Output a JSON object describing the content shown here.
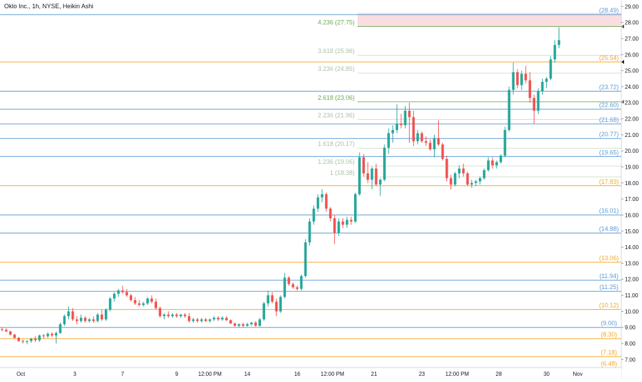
{
  "header": {
    "title": "Oklo Inc., 1h, NYSE, Heikin Ashi"
  },
  "colors": {
    "blue_level": "#5b9bd5",
    "orange_level": "#f5a623",
    "fib_green": "#6aa84f",
    "fib_faint": "#a9c3a6",
    "bull": "#26a69a",
    "bear": "#ef5350",
    "target_zone": "#f8d7da"
  },
  "chart_data": {
    "type": "candlestick",
    "title": "Oklo Inc., 1h, NYSE, Heikin Ashi",
    "ylim": [
      6.5,
      29.4
    ],
    "y_ticks": [
      "29.00",
      "28.00",
      "27.00",
      "26.00",
      "25.00",
      "24.00",
      "23.00",
      "22.00",
      "21.00",
      "20.00",
      "19.00",
      "18.00",
      "17.00",
      "16.00",
      "15.00",
      "14.00",
      "13.00",
      "12.00",
      "11.00",
      "10.00",
      "9.00",
      "8.00",
      "7.00"
    ],
    "x_ticks": [
      {
        "label": "Oct",
        "x": 0.6
      },
      {
        "label": "3",
        "x": 3.2
      },
      {
        "label": "7",
        "x": 5.5
      },
      {
        "label": "9",
        "x": 8.1
      },
      {
        "label": "12:00 PM",
        "x": 9.7
      },
      {
        "label": "14",
        "x": 11.5
      },
      {
        "label": "16",
        "x": 13.9
      },
      {
        "label": "12:00 PM",
        "x": 15.6
      },
      {
        "label": "21",
        "x": 17.6
      },
      {
        "label": "23",
        "x": 19.9
      },
      {
        "label": "12:00 PM",
        "x": 21.6
      },
      {
        "label": "28",
        "x": 23.6
      },
      {
        "label": "30",
        "x": 25.9
      },
      {
        "label": "Nov",
        "x": 27.4
      }
    ],
    "xlim": [
      -0.4,
      29.5
    ],
    "levels": [
      {
        "label": "(28.49)",
        "value": 28.49,
        "color": "blue"
      },
      {
        "label": "(25.54)",
        "value": 25.54,
        "color": "orange"
      },
      {
        "label": "(23.72)",
        "value": 23.72,
        "color": "blue"
      },
      {
        "label": "(22.60)",
        "value": 22.6,
        "color": "blue"
      },
      {
        "label": "(21.68)",
        "value": 21.68,
        "color": "blue"
      },
      {
        "label": "(20.77)",
        "value": 20.77,
        "color": "blue"
      },
      {
        "label": "(19.65)",
        "value": 19.65,
        "color": "blue"
      },
      {
        "label": "(17.83)",
        "value": 17.83,
        "color": "orange"
      },
      {
        "label": "(16.01)",
        "value": 16.01,
        "color": "blue"
      },
      {
        "label": "(14.88)",
        "value": 14.88,
        "color": "blue"
      },
      {
        "label": "(13.06)",
        "value": 13.06,
        "color": "orange"
      },
      {
        "label": "(11.94)",
        "value": 11.94,
        "color": "blue"
      },
      {
        "label": "(11.25)",
        "value": 11.25,
        "color": "blue"
      },
      {
        "label": "(10.12)",
        "value": 10.12,
        "color": "orange"
      },
      {
        "label": "(9.00)",
        "value": 9.0,
        "color": "blue"
      },
      {
        "label": "(8.30)",
        "value": 8.3,
        "color": "orange"
      },
      {
        "label": "(7.18)",
        "value": 7.18,
        "color": "orange"
      },
      {
        "label": "(6.48)",
        "value": 6.48,
        "color": "orange"
      }
    ],
    "fib_levels": [
      {
        "label": "4.236 (27.75)",
        "value": 27.75,
        "strong": true
      },
      {
        "label": "3.618 (25.96)",
        "value": 25.96,
        "strong": false
      },
      {
        "label": "3.236 (24.85)",
        "value": 24.85,
        "strong": false
      },
      {
        "label": "2.618 (23.06)",
        "value": 23.06,
        "strong": true
      },
      {
        "label": "2.236 (21.96)",
        "value": 21.96,
        "strong": false
      },
      {
        "label": "1.618 (20.17)",
        "value": 20.17,
        "strong": false
      },
      {
        "label": "1.236 (19.06)",
        "value": 19.06,
        "strong": false
      },
      {
        "label": "1 (18.38)",
        "value": 18.38,
        "strong": false
      }
    ],
    "fib_x_start": 16.8,
    "target_zone": {
      "from": 27.75,
      "to": 28.6,
      "x_start": 16.8
    },
    "candles": [
      {
        "x": -0.3,
        "o": 8.9,
        "h": 9.0,
        "l": 8.75,
        "c": 8.85
      },
      {
        "x": -0.1,
        "o": 8.85,
        "h": 8.95,
        "l": 8.7,
        "c": 8.75
      },
      {
        "x": 0.1,
        "o": 8.75,
        "h": 8.8,
        "l": 8.5,
        "c": 8.55
      },
      {
        "x": 0.3,
        "o": 8.55,
        "h": 8.6,
        "l": 8.3,
        "c": 8.35
      },
      {
        "x": 0.5,
        "o": 8.35,
        "h": 8.4,
        "l": 8.1,
        "c": 8.15
      },
      {
        "x": 0.7,
        "o": 8.15,
        "h": 8.25,
        "l": 8.0,
        "c": 8.1
      },
      {
        "x": 0.9,
        "o": 8.1,
        "h": 8.2,
        "l": 7.95,
        "c": 8.15
      },
      {
        "x": 1.1,
        "o": 8.15,
        "h": 8.35,
        "l": 8.05,
        "c": 8.3
      },
      {
        "x": 1.3,
        "o": 8.3,
        "h": 8.45,
        "l": 8.1,
        "c": 8.2
      },
      {
        "x": 1.5,
        "o": 8.2,
        "h": 8.55,
        "l": 8.1,
        "c": 8.5
      },
      {
        "x": 1.7,
        "o": 8.5,
        "h": 8.6,
        "l": 8.3,
        "c": 8.45
      },
      {
        "x": 1.9,
        "o": 8.45,
        "h": 8.7,
        "l": 8.35,
        "c": 8.6
      },
      {
        "x": 2.1,
        "o": 8.6,
        "h": 8.7,
        "l": 8.4,
        "c": 8.5
      },
      {
        "x": 2.3,
        "o": 8.5,
        "h": 8.75,
        "l": 8.0,
        "c": 8.65
      },
      {
        "x": 2.5,
        "o": 8.65,
        "h": 9.3,
        "l": 8.6,
        "c": 9.2
      },
      {
        "x": 2.7,
        "o": 9.2,
        "h": 9.8,
        "l": 9.1,
        "c": 9.7
      },
      {
        "x": 2.9,
        "o": 9.7,
        "h": 10.3,
        "l": 9.5,
        "c": 10.0
      },
      {
        "x": 3.1,
        "o": 10.0,
        "h": 10.2,
        "l": 9.4,
        "c": 9.5
      },
      {
        "x": 3.3,
        "o": 9.5,
        "h": 9.7,
        "l": 9.2,
        "c": 9.4
      },
      {
        "x": 3.5,
        "o": 9.4,
        "h": 9.8,
        "l": 9.3,
        "c": 9.6
      },
      {
        "x": 3.7,
        "o": 9.6,
        "h": 9.7,
        "l": 9.3,
        "c": 9.4
      },
      {
        "x": 3.9,
        "o": 9.4,
        "h": 9.6,
        "l": 9.3,
        "c": 9.5
      },
      {
        "x": 4.1,
        "o": 9.5,
        "h": 9.7,
        "l": 9.3,
        "c": 9.4
      },
      {
        "x": 4.3,
        "o": 9.4,
        "h": 9.9,
        "l": 9.3,
        "c": 9.8
      },
      {
        "x": 4.5,
        "o": 9.8,
        "h": 10.1,
        "l": 9.4,
        "c": 9.5
      },
      {
        "x": 4.7,
        "o": 9.5,
        "h": 10.2,
        "l": 9.4,
        "c": 10.1
      },
      {
        "x": 4.9,
        "o": 10.1,
        "h": 10.9,
        "l": 10.0,
        "c": 10.8
      },
      {
        "x": 5.1,
        "o": 10.8,
        "h": 11.2,
        "l": 10.6,
        "c": 11.1
      },
      {
        "x": 5.3,
        "o": 11.1,
        "h": 11.4,
        "l": 10.9,
        "c": 11.3
      },
      {
        "x": 5.5,
        "o": 11.3,
        "h": 11.6,
        "l": 11.1,
        "c": 11.2
      },
      {
        "x": 5.7,
        "o": 11.2,
        "h": 11.4,
        "l": 10.9,
        "c": 11.0
      },
      {
        "x": 5.9,
        "o": 11.0,
        "h": 11.1,
        "l": 10.6,
        "c": 10.7
      },
      {
        "x": 6.1,
        "o": 10.7,
        "h": 10.9,
        "l": 10.4,
        "c": 10.5
      },
      {
        "x": 6.3,
        "o": 10.5,
        "h": 10.7,
        "l": 10.3,
        "c": 10.4
      },
      {
        "x": 6.5,
        "o": 10.4,
        "h": 10.6,
        "l": 10.3,
        "c": 10.5
      },
      {
        "x": 6.7,
        "o": 10.5,
        "h": 10.9,
        "l": 10.4,
        "c": 10.8
      },
      {
        "x": 6.9,
        "o": 10.8,
        "h": 11.0,
        "l": 10.5,
        "c": 10.6
      },
      {
        "x": 7.1,
        "o": 10.6,
        "h": 10.8,
        "l": 10.1,
        "c": 10.2
      },
      {
        "x": 7.3,
        "o": 10.2,
        "h": 10.3,
        "l": 9.6,
        "c": 9.7
      },
      {
        "x": 7.5,
        "o": 9.7,
        "h": 9.9,
        "l": 9.5,
        "c": 9.8
      },
      {
        "x": 7.7,
        "o": 9.8,
        "h": 10.0,
        "l": 9.6,
        "c": 9.7
      },
      {
        "x": 7.9,
        "o": 9.7,
        "h": 9.9,
        "l": 9.6,
        "c": 9.8
      },
      {
        "x": 8.1,
        "o": 9.8,
        "h": 9.9,
        "l": 9.6,
        "c": 9.7
      },
      {
        "x": 8.3,
        "o": 9.7,
        "h": 9.85,
        "l": 9.6,
        "c": 9.8
      },
      {
        "x": 8.5,
        "o": 9.8,
        "h": 9.9,
        "l": 9.6,
        "c": 9.7
      },
      {
        "x": 8.7,
        "o": 9.7,
        "h": 9.9,
        "l": 9.3,
        "c": 9.4
      },
      {
        "x": 8.9,
        "o": 9.4,
        "h": 9.6,
        "l": 9.3,
        "c": 9.5
      },
      {
        "x": 9.1,
        "o": 9.5,
        "h": 9.6,
        "l": 9.3,
        "c": 9.4
      },
      {
        "x": 9.3,
        "o": 9.4,
        "h": 9.6,
        "l": 9.3,
        "c": 9.5
      },
      {
        "x": 9.5,
        "o": 9.5,
        "h": 9.6,
        "l": 9.35,
        "c": 9.4
      },
      {
        "x": 9.7,
        "o": 9.4,
        "h": 9.55,
        "l": 9.3,
        "c": 9.5
      },
      {
        "x": 9.9,
        "o": 9.5,
        "h": 9.7,
        "l": 9.4,
        "c": 9.6
      },
      {
        "x": 10.1,
        "o": 9.6,
        "h": 9.7,
        "l": 9.4,
        "c": 9.5
      },
      {
        "x": 10.3,
        "o": 9.5,
        "h": 9.7,
        "l": 9.4,
        "c": 9.6
      },
      {
        "x": 10.5,
        "o": 9.6,
        "h": 9.7,
        "l": 9.4,
        "c": 9.45
      },
      {
        "x": 10.7,
        "o": 9.45,
        "h": 9.5,
        "l": 9.2,
        "c": 9.25
      },
      {
        "x": 10.9,
        "o": 9.25,
        "h": 9.3,
        "l": 9.05,
        "c": 9.1
      },
      {
        "x": 11.1,
        "o": 9.1,
        "h": 9.25,
        "l": 9.0,
        "c": 9.2
      },
      {
        "x": 11.3,
        "o": 9.2,
        "h": 9.3,
        "l": 9.0,
        "c": 9.1
      },
      {
        "x": 11.5,
        "o": 9.1,
        "h": 9.3,
        "l": 9.05,
        "c": 9.2
      },
      {
        "x": 11.7,
        "o": 9.2,
        "h": 9.35,
        "l": 9.1,
        "c": 9.3
      },
      {
        "x": 11.9,
        "o": 9.3,
        "h": 9.4,
        "l": 9.05,
        "c": 9.1
      },
      {
        "x": 12.1,
        "o": 9.1,
        "h": 9.6,
        "l": 9.05,
        "c": 9.5
      },
      {
        "x": 12.3,
        "o": 9.5,
        "h": 10.6,
        "l": 9.4,
        "c": 10.5
      },
      {
        "x": 12.5,
        "o": 10.5,
        "h": 11.3,
        "l": 10.3,
        "c": 11.0
      },
      {
        "x": 12.7,
        "o": 11.0,
        "h": 11.2,
        "l": 10.5,
        "c": 10.6
      },
      {
        "x": 12.9,
        "o": 10.6,
        "h": 10.8,
        "l": 9.7,
        "c": 10.0
      },
      {
        "x": 13.1,
        "o": 10.0,
        "h": 11.0,
        "l": 9.9,
        "c": 10.9
      },
      {
        "x": 13.3,
        "o": 10.9,
        "h": 12.4,
        "l": 10.8,
        "c": 12.1
      },
      {
        "x": 13.5,
        "o": 12.1,
        "h": 12.2,
        "l": 11.6,
        "c": 11.7
      },
      {
        "x": 13.7,
        "o": 11.7,
        "h": 11.8,
        "l": 11.4,
        "c": 11.5
      },
      {
        "x": 13.9,
        "o": 11.5,
        "h": 11.6,
        "l": 11.3,
        "c": 11.4
      },
      {
        "x": 14.1,
        "o": 11.4,
        "h": 12.3,
        "l": 11.3,
        "c": 12.2
      },
      {
        "x": 14.3,
        "o": 12.2,
        "h": 14.5,
        "l": 12.1,
        "c": 14.3
      },
      {
        "x": 14.5,
        "o": 14.3,
        "h": 15.8,
        "l": 14.1,
        "c": 15.6
      },
      {
        "x": 14.7,
        "o": 15.6,
        "h": 16.6,
        "l": 15.4,
        "c": 16.4
      },
      {
        "x": 14.9,
        "o": 16.4,
        "h": 17.3,
        "l": 16.2,
        "c": 17.1
      },
      {
        "x": 15.1,
        "o": 17.1,
        "h": 17.6,
        "l": 16.8,
        "c": 17.3
      },
      {
        "x": 15.3,
        "o": 17.3,
        "h": 17.4,
        "l": 16.2,
        "c": 16.4
      },
      {
        "x": 15.5,
        "o": 16.4,
        "h": 16.5,
        "l": 15.6,
        "c": 15.8
      },
      {
        "x": 15.7,
        "o": 15.8,
        "h": 16.0,
        "l": 14.2,
        "c": 14.9
      },
      {
        "x": 15.9,
        "o": 14.9,
        "h": 15.8,
        "l": 14.7,
        "c": 15.6
      },
      {
        "x": 16.1,
        "o": 15.6,
        "h": 15.8,
        "l": 15.2,
        "c": 15.4
      },
      {
        "x": 16.3,
        "o": 15.4,
        "h": 15.9,
        "l": 15.2,
        "c": 15.7
      },
      {
        "x": 16.5,
        "o": 15.7,
        "h": 15.9,
        "l": 15.4,
        "c": 15.6
      },
      {
        "x": 16.7,
        "o": 15.6,
        "h": 17.4,
        "l": 15.5,
        "c": 17.3
      },
      {
        "x": 16.9,
        "o": 17.3,
        "h": 19.9,
        "l": 17.2,
        "c": 19.6
      },
      {
        "x": 17.1,
        "o": 19.6,
        "h": 19.8,
        "l": 18.4,
        "c": 18.6
      },
      {
        "x": 17.3,
        "o": 18.6,
        "h": 19.3,
        "l": 18.0,
        "c": 18.2
      },
      {
        "x": 17.5,
        "o": 18.2,
        "h": 19.0,
        "l": 17.6,
        "c": 18.9
      },
      {
        "x": 17.7,
        "o": 18.9,
        "h": 19.2,
        "l": 17.8,
        "c": 17.9
      },
      {
        "x": 17.9,
        "o": 17.9,
        "h": 18.3,
        "l": 17.2,
        "c": 18.2
      },
      {
        "x": 18.1,
        "o": 18.2,
        "h": 20.4,
        "l": 18.1,
        "c": 20.2
      },
      {
        "x": 18.3,
        "o": 20.2,
        "h": 21.4,
        "l": 19.8,
        "c": 21.1
      },
      {
        "x": 18.5,
        "o": 21.1,
        "h": 21.6,
        "l": 20.5,
        "c": 21.3
      },
      {
        "x": 18.7,
        "o": 21.3,
        "h": 22.9,
        "l": 21.1,
        "c": 21.7
      },
      {
        "x": 18.9,
        "o": 21.7,
        "h": 22.3,
        "l": 21.4,
        "c": 21.6
      },
      {
        "x": 19.1,
        "o": 21.6,
        "h": 22.8,
        "l": 21.4,
        "c": 22.5
      },
      {
        "x": 19.3,
        "o": 22.5,
        "h": 23.0,
        "l": 20.5,
        "c": 22.1
      },
      {
        "x": 19.5,
        "o": 22.1,
        "h": 22.5,
        "l": 20.3,
        "c": 20.6
      },
      {
        "x": 19.7,
        "o": 20.6,
        "h": 21.3,
        "l": 20.4,
        "c": 21.1
      },
      {
        "x": 19.9,
        "o": 21.1,
        "h": 21.2,
        "l": 20.5,
        "c": 20.6
      },
      {
        "x": 20.1,
        "o": 20.6,
        "h": 20.9,
        "l": 20.3,
        "c": 20.5
      },
      {
        "x": 20.3,
        "o": 20.5,
        "h": 20.7,
        "l": 20.0,
        "c": 20.1
      },
      {
        "x": 20.5,
        "o": 20.1,
        "h": 21.0,
        "l": 19.6,
        "c": 20.8
      },
      {
        "x": 20.7,
        "o": 20.8,
        "h": 21.9,
        "l": 20.3,
        "c": 20.4
      },
      {
        "x": 20.9,
        "o": 20.4,
        "h": 20.5,
        "l": 19.4,
        "c": 19.5
      },
      {
        "x": 21.1,
        "o": 19.5,
        "h": 19.7,
        "l": 18.1,
        "c": 18.3
      },
      {
        "x": 21.3,
        "o": 18.3,
        "h": 18.5,
        "l": 17.6,
        "c": 17.9
      },
      {
        "x": 21.5,
        "o": 17.9,
        "h": 18.7,
        "l": 17.8,
        "c": 18.6
      },
      {
        "x": 21.7,
        "o": 18.6,
        "h": 19.1,
        "l": 18.3,
        "c": 18.9
      },
      {
        "x": 21.9,
        "o": 18.9,
        "h": 19.2,
        "l": 18.4,
        "c": 18.6
      },
      {
        "x": 22.1,
        "o": 18.6,
        "h": 18.7,
        "l": 17.8,
        "c": 17.9
      },
      {
        "x": 22.3,
        "o": 17.9,
        "h": 18.2,
        "l": 17.7,
        "c": 18.0
      },
      {
        "x": 22.5,
        "o": 18.0,
        "h": 18.2,
        "l": 17.8,
        "c": 18.1
      },
      {
        "x": 22.7,
        "o": 18.1,
        "h": 18.4,
        "l": 17.9,
        "c": 18.3
      },
      {
        "x": 22.9,
        "o": 18.3,
        "h": 18.9,
        "l": 18.2,
        "c": 18.8
      },
      {
        "x": 23.1,
        "o": 18.8,
        "h": 19.6,
        "l": 18.7,
        "c": 19.4
      },
      {
        "x": 23.3,
        "o": 19.4,
        "h": 19.6,
        "l": 18.9,
        "c": 19.1
      },
      {
        "x": 23.5,
        "o": 19.1,
        "h": 19.4,
        "l": 18.9,
        "c": 19.3
      },
      {
        "x": 23.7,
        "o": 19.3,
        "h": 19.8,
        "l": 19.2,
        "c": 19.7
      },
      {
        "x": 23.9,
        "o": 19.7,
        "h": 21.5,
        "l": 19.6,
        "c": 21.3
      },
      {
        "x": 24.1,
        "o": 21.3,
        "h": 24.0,
        "l": 21.2,
        "c": 23.8
      },
      {
        "x": 24.3,
        "o": 23.8,
        "h": 25.5,
        "l": 23.5,
        "c": 24.9
      },
      {
        "x": 24.5,
        "o": 24.9,
        "h": 25.1,
        "l": 23.9,
        "c": 24.1
      },
      {
        "x": 24.7,
        "o": 24.1,
        "h": 25.0,
        "l": 23.8,
        "c": 24.8
      },
      {
        "x": 24.9,
        "o": 24.8,
        "h": 25.3,
        "l": 24.2,
        "c": 24.4
      },
      {
        "x": 25.1,
        "o": 24.4,
        "h": 24.9,
        "l": 23.0,
        "c": 23.3
      },
      {
        "x": 25.3,
        "o": 23.3,
        "h": 23.5,
        "l": 21.7,
        "c": 22.5
      },
      {
        "x": 25.5,
        "o": 22.5,
        "h": 23.9,
        "l": 22.3,
        "c": 23.7
      },
      {
        "x": 25.7,
        "o": 23.7,
        "h": 24.5,
        "l": 23.5,
        "c": 24.3
      },
      {
        "x": 25.9,
        "o": 24.3,
        "h": 24.6,
        "l": 23.9,
        "c": 24.5
      },
      {
        "x": 26.1,
        "o": 24.5,
        "h": 25.9,
        "l": 24.4,
        "c": 25.7
      },
      {
        "x": 26.3,
        "o": 25.7,
        "h": 26.9,
        "l": 25.5,
        "c": 26.6
      },
      {
        "x": 26.5,
        "o": 26.6,
        "h": 27.7,
        "l": 26.4,
        "c": 26.9
      }
    ]
  }
}
